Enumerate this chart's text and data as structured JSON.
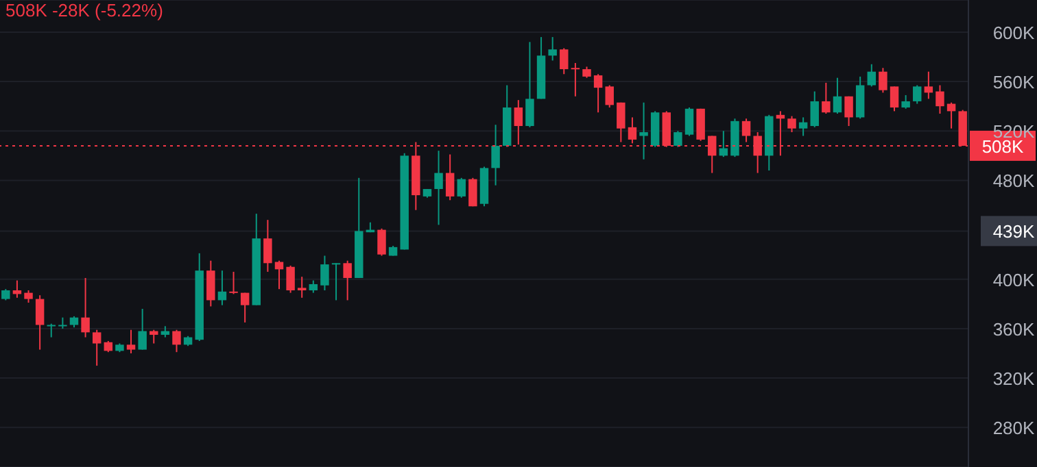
{
  "chart_data": {
    "type": "candlestick",
    "categories": [
      null,
      null,
      null,
      null,
      null,
      null,
      null,
      null,
      null,
      null,
      null,
      null,
      null,
      null,
      null,
      null,
      null,
      null,
      null,
      null,
      null,
      null,
      null,
      null,
      null,
      null,
      null,
      null,
      null,
      null,
      null,
      null,
      null,
      null,
      null,
      null,
      null,
      null,
      null,
      null,
      null,
      null,
      null,
      null,
      null,
      null,
      null,
      null,
      null,
      null,
      null,
      null,
      null,
      null,
      null,
      null,
      null,
      null,
      null,
      null,
      null,
      null,
      null,
      null,
      null,
      null,
      null,
      null,
      null,
      null,
      null,
      null,
      null,
      null,
      null,
      null,
      null,
      null,
      null,
      null,
      null,
      null,
      null,
      null,
      null
    ],
    "ohlc": [
      [
        384,
        392,
        383,
        391
      ],
      [
        391,
        399,
        385,
        388
      ],
      [
        389,
        391,
        381,
        384
      ],
      [
        384,
        387,
        343,
        363
      ],
      [
        362,
        364,
        353,
        363
      ],
      [
        362,
        369,
        360,
        363
      ],
      [
        363,
        370,
        361,
        369
      ],
      [
        369,
        401,
        353,
        357
      ],
      [
        357,
        359,
        330,
        348
      ],
      [
        349,
        350,
        341,
        342
      ],
      [
        342,
        348,
        341,
        347
      ],
      [
        347,
        359,
        340,
        343
      ],
      [
        343,
        376,
        343,
        358
      ],
      [
        358,
        359,
        348,
        355
      ],
      [
        355,
        362,
        353,
        358
      ],
      [
        358,
        359,
        341,
        347
      ],
      [
        347,
        354,
        346,
        353
      ],
      [
        351,
        421,
        350,
        407
      ],
      [
        407,
        415,
        378,
        383
      ],
      [
        383,
        407,
        379,
        390
      ],
      [
        390,
        406,
        388,
        389
      ],
      [
        389,
        389,
        365,
        379
      ],
      [
        379,
        453,
        379,
        433
      ],
      [
        433,
        448,
        406,
        413
      ],
      [
        414,
        415,
        392,
        408
      ],
      [
        410,
        411,
        389,
        391
      ],
      [
        393,
        402,
        385,
        391
      ],
      [
        391,
        399,
        389,
        396
      ],
      [
        395,
        419,
        391,
        412
      ],
      [
        412,
        413,
        383,
        413
      ],
      [
        413,
        415,
        383,
        401
      ],
      [
        401,
        482,
        401,
        439
      ],
      [
        438,
        446,
        438,
        440
      ],
      [
        440,
        441,
        419,
        420
      ],
      [
        419,
        427,
        419,
        426
      ],
      [
        424,
        502,
        424,
        500
      ],
      [
        500,
        511,
        456,
        468
      ],
      [
        467,
        473,
        466,
        473
      ],
      [
        473,
        504,
        444,
        486
      ],
      [
        486,
        501,
        464,
        467
      ],
      [
        467,
        482,
        466,
        481
      ],
      [
        481,
        482,
        459,
        459
      ],
      [
        461,
        491,
        459,
        490
      ],
      [
        490,
        525,
        476,
        508
      ],
      [
        508,
        557,
        507,
        539
      ],
      [
        539,
        545,
        509,
        524
      ],
      [
        524,
        592,
        523,
        546
      ],
      [
        546,
        596,
        546,
        581
      ],
      [
        581,
        596,
        577,
        586
      ],
      [
        586,
        587,
        566,
        570
      ],
      [
        571,
        575,
        548,
        570
      ],
      [
        570,
        572,
        563,
        564
      ],
      [
        565,
        566,
        535,
        555
      ],
      [
        556,
        557,
        539,
        541
      ],
      [
        543,
        543,
        511,
        522
      ],
      [
        523,
        531,
        510,
        513
      ],
      [
        516,
        543,
        497,
        519
      ],
      [
        508,
        536,
        507,
        535
      ],
      [
        535,
        536,
        507,
        508
      ],
      [
        508,
        520,
        507,
        519
      ],
      [
        517,
        539,
        516,
        538
      ],
      [
        538,
        538,
        512,
        513
      ],
      [
        516,
        516,
        486,
        500
      ],
      [
        500,
        520,
        499,
        506
      ],
      [
        500,
        530,
        499,
        528
      ],
      [
        528,
        530,
        511,
        516
      ],
      [
        516,
        519,
        486,
        500
      ],
      [
        500,
        533,
        488,
        532
      ],
      [
        533,
        536,
        500,
        530
      ],
      [
        530,
        532,
        519,
        522
      ],
      [
        522,
        531,
        516,
        527
      ],
      [
        524,
        552,
        523,
        544
      ],
      [
        544,
        559,
        534,
        535
      ],
      [
        535,
        563,
        534,
        548
      ],
      [
        548,
        548,
        524,
        531
      ],
      [
        531,
        564,
        530,
        557
      ],
      [
        557,
        574,
        556,
        568
      ],
      [
        568,
        571,
        551,
        553
      ],
      [
        556,
        556,
        536,
        539
      ],
      [
        539,
        549,
        538,
        544
      ],
      [
        544,
        557,
        542,
        556
      ],
      [
        556,
        568,
        546,
        551
      ],
      [
        552,
        557,
        534,
        540
      ],
      [
        542,
        543,
        522,
        536
      ],
      [
        536,
        537,
        508,
        508
      ]
    ],
    "colors": [
      "#089981",
      "#f23645",
      "#f23645",
      "#f23645",
      "#089981",
      "#089981",
      "#089981",
      "#f23645",
      "#f23645",
      "#f23645",
      "#089981",
      "#f23645",
      "#089981",
      "#f23645",
      "#089981",
      "#f23645",
      "#089981",
      "#089981",
      "#f23645",
      "#089981",
      "#f23645",
      "#f23645",
      "#089981",
      "#f23645",
      "#f23645",
      "#f23645",
      "#f23645",
      "#089981",
      "#089981",
      "#089981",
      "#f23645",
      "#089981",
      "#089981",
      "#f23645",
      "#089981",
      "#089981",
      "#f23645",
      "#089981",
      "#089981",
      "#f23645",
      "#089981",
      "#f23645",
      "#089981",
      "#089981",
      "#089981",
      "#f23645",
      "#089981",
      "#089981",
      "#089981",
      "#f23645",
      "#f23645",
      "#f23645",
      "#f23645",
      "#f23645",
      "#f23645",
      "#f23645",
      "#089981",
      "#089981",
      "#f23645",
      "#089981",
      "#089981",
      "#f23645",
      "#f23645",
      "#089981",
      "#089981",
      "#f23645",
      "#f23645",
      "#089981",
      "#f23645",
      "#f23645",
      "#089981",
      "#089981",
      "#f23645",
      "#089981",
      "#f23645",
      "#089981",
      "#089981",
      "#f23645",
      "#f23645",
      "#089981",
      "#089981",
      "#f23645",
      "#f23645",
      "#f23645",
      "#f23645"
    ],
    "ylim": [
      248,
      626
    ],
    "yticks": [
      {
        "value": 280,
        "label": "280K"
      },
      {
        "value": 320,
        "label": "320K"
      },
      {
        "value": 360,
        "label": "360K"
      },
      {
        "value": 400,
        "label": "400K"
      },
      {
        "value": 439,
        "label": "439K"
      },
      {
        "value": 480,
        "label": "480K"
      },
      {
        "value": 520,
        "label": "520K"
      },
      {
        "value": 560,
        "label": "560K"
      },
      {
        "value": 600,
        "label": "600K"
      }
    ],
    "tick_labels": "y",
    "grid": "y",
    "ref_lines": [
      {
        "axis": "y",
        "value": 508,
        "label": "508K",
        "color": "#f23645",
        "line_style": "dotted"
      }
    ],
    "annotations": [
      "508K -28K (-5.22%)"
    ]
  }
}
